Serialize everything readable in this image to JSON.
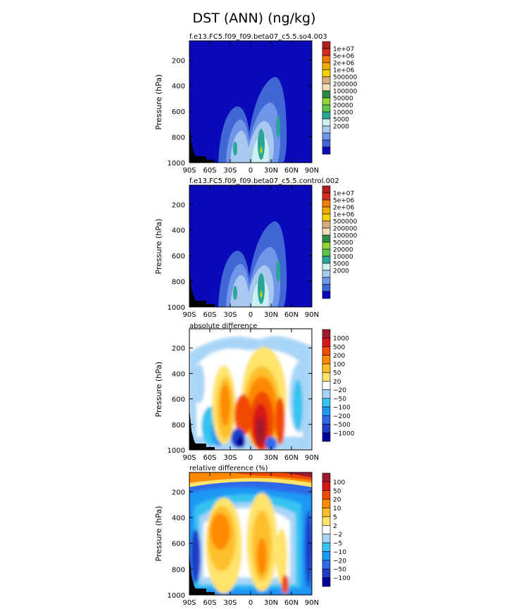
{
  "title": "DST (ANN) (ng/kg)",
  "colors": {
    "conc_fills": [
      "#0a0ab8",
      "#3f67d6",
      "#6f96e8",
      "#a9c8f0",
      "#ccf0f0",
      "#2aa597",
      "#5ec34f",
      "#93d33a",
      "#2e8a4a",
      "#f2ddb4",
      "#d8ae80",
      "#f6d300",
      "#f2ae00",
      "#ef7d00",
      "#d72b1e",
      "#b01e1e"
    ],
    "diff_fills": [
      "#000099",
      "#1f3dc9",
      "#2f69e8",
      "#1e98f5",
      "#36c3f0",
      "#a8d5f7",
      "#ffffff",
      "#ffe36a",
      "#fdbf29",
      "#ff8a00",
      "#f24a00",
      "#d81717",
      "#9e1a2c"
    ],
    "terrain": "#000000"
  },
  "chart_data": [
    {
      "type": "heatmap",
      "subtitle": "f.e13.FC5.f09_f09.beta07_c5.5.so4.003",
      "xlabel": "",
      "ylabel": "Pressure (hPa)",
      "x_ticks": [
        "90S",
        "60S",
        "30S",
        "0",
        "30N",
        "60N",
        "90N"
      ],
      "y_ticks": [
        "200",
        "400",
        "600",
        "800",
        "1000"
      ],
      "xlim": [
        -90,
        90
      ],
      "ylim": [
        1000,
        50
      ],
      "legend_labels": [
        "1e+07",
        "5e+06",
        "2e+06",
        "1e+06",
        "500000",
        "200000",
        "100000",
        "50000",
        "20000",
        "10000",
        "5000",
        "2000"
      ]
    },
    {
      "type": "heatmap",
      "subtitle": "f.e13.FC5.f09_f09.beta07_c5.5.control.002",
      "xlabel": "",
      "ylabel": "Pressure (hPa)",
      "x_ticks": [
        "90S",
        "60S",
        "30S",
        "0",
        "30N",
        "60N",
        "90N"
      ],
      "y_ticks": [
        "200",
        "400",
        "600",
        "800",
        "1000"
      ],
      "xlim": [
        -90,
        90
      ],
      "ylim": [
        1000,
        50
      ],
      "legend_labels": [
        "1e+07",
        "5e+06",
        "2e+06",
        "1e+06",
        "500000",
        "200000",
        "100000",
        "50000",
        "20000",
        "10000",
        "5000",
        "2000"
      ]
    },
    {
      "type": "heatmap",
      "subtitle": "absolute difference",
      "xlabel": "",
      "ylabel": "Pressure (hPa)",
      "x_ticks": [
        "90S",
        "60S",
        "30S",
        "0",
        "30N",
        "60N",
        "90N"
      ],
      "y_ticks": [
        "200",
        "400",
        "600",
        "800",
        "1000"
      ],
      "xlim": [
        -90,
        90
      ],
      "ylim": [
        1000,
        50
      ],
      "legend_labels": [
        "1000",
        "500",
        "200",
        "100",
        "50",
        "20",
        "−20",
        "−50",
        "−100",
        "−200",
        "−500",
        "−1000"
      ]
    },
    {
      "type": "heatmap",
      "subtitle": "relative difference (%)",
      "xlabel": "",
      "ylabel": "Pressure (hPa)",
      "x_ticks": [
        "90S",
        "60S",
        "30S",
        "0",
        "30N",
        "60N",
        "90N"
      ],
      "y_ticks": [
        "200",
        "400",
        "600",
        "800",
        "1000"
      ],
      "xlim": [
        -90,
        90
      ],
      "ylim": [
        1000,
        50
      ],
      "legend_labels": [
        "100",
        "50",
        "20",
        "10",
        "5",
        "2",
        "−2",
        "−5",
        "−10",
        "−20",
        "−50",
        "−100"
      ]
    }
  ]
}
